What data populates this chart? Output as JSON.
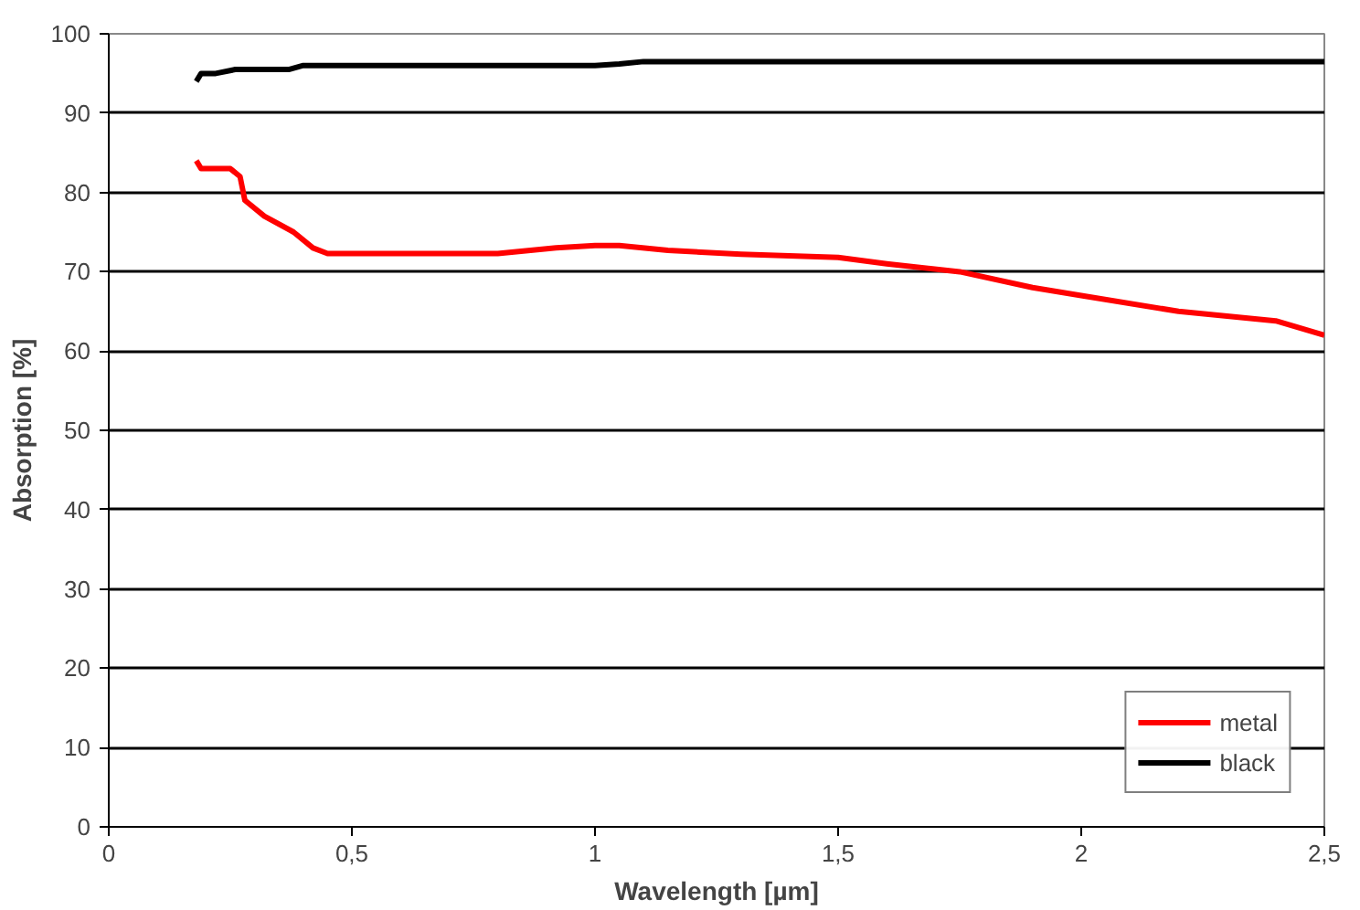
{
  "chart_data": {
    "type": "line",
    "xlabel": "Wavelength [µm]",
    "ylabel": "Absorption [%]",
    "xlim": [
      0,
      2.5
    ],
    "xticks": [
      0,
      {
        "value": 0.5,
        "label": "0,5"
      },
      1,
      {
        "value": 1.5,
        "label": "1,5"
      },
      2,
      {
        "value": 2.5,
        "label": "2,5"
      }
    ],
    "ylim": [
      0,
      100
    ],
    "yticks": [
      0,
      10,
      20,
      30,
      40,
      50,
      60,
      70,
      80,
      90,
      100
    ],
    "grid": "y",
    "legend": "bottom right",
    "line_style": "solid",
    "series": [
      {
        "name": "metal",
        "color": "#ff0000",
        "x": [
          0.18,
          0.19,
          0.25,
          0.27,
          0.28,
          0.32,
          0.38,
          0.42,
          0.45,
          0.8,
          0.92,
          1.0,
          1.05,
          1.15,
          1.3,
          1.5,
          1.6,
          1.75,
          1.9,
          2.0,
          2.2,
          2.4,
          2.5
        ],
        "values": [
          84,
          83,
          83,
          82,
          79,
          77,
          75,
          73,
          72.3,
          72.3,
          73,
          73.3,
          73.3,
          72.7,
          72.2,
          71.8,
          71,
          70,
          68,
          67,
          65,
          63.8,
          62
        ]
      },
      {
        "name": "black",
        "color": "#000000",
        "x": [
          0.18,
          0.19,
          0.22,
          0.26,
          0.3,
          0.37,
          0.4,
          1.0,
          1.05,
          1.1,
          2.5
        ],
        "values": [
          94,
          95,
          95,
          95.5,
          95.5,
          95.5,
          96,
          96,
          96.2,
          96.5,
          96.5
        ]
      }
    ]
  }
}
